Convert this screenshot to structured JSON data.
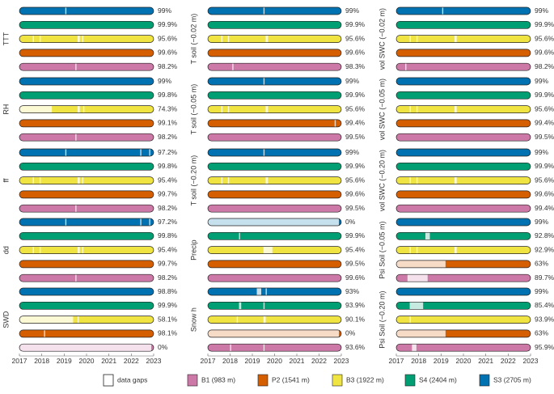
{
  "colors": {
    "B1": "#cc79a7",
    "P2": "#d55e00",
    "B3": "#f0e442",
    "S4": "#009e73",
    "S3": "#0072b2"
  },
  "legend": {
    "gap_label": "data gaps",
    "items": [
      {
        "key": "B1",
        "label": "B1 (983 m)"
      },
      {
        "key": "P2",
        "label": "P2 (1541 m)"
      },
      {
        "key": "B3",
        "label": "B3 (1922 m)"
      },
      {
        "key": "S4",
        "label": "S4 (2404 m)"
      },
      {
        "key": "S3",
        "label": "S3 (2705 m)"
      }
    ]
  },
  "chart_data": {
    "type": "bar",
    "description_of_values": "percentage of available data per station and variable, 2017-2023",
    "x_ticks": [
      "2017",
      "2018",
      "2019",
      "2020",
      "2021",
      "2022",
      "2023"
    ],
    "xlim": [
      2017,
      2023
    ],
    "station_order": [
      "S3",
      "S4",
      "B3",
      "P2",
      "B1"
    ],
    "panels": [
      {
        "col": 0,
        "row": 0,
        "label": "TTT",
        "pct": [
          "99%",
          "99.9%",
          "95.6%",
          "99.6%",
          "98.2%"
        ]
      },
      {
        "col": 0,
        "row": 1,
        "label": "RH",
        "pct": [
          "99%",
          "99.8%",
          "74.3%",
          "99.1%",
          "98.2%"
        ]
      },
      {
        "col": 0,
        "row": 2,
        "label": "ff",
        "pct": [
          "97.2%",
          "99.8%",
          "95.4%",
          "99.7%",
          "98.2%"
        ]
      },
      {
        "col": 0,
        "row": 3,
        "label": "dd",
        "pct": [
          "97.2%",
          "99.8%",
          "95.4%",
          "99.7%",
          "98.2%"
        ]
      },
      {
        "col": 0,
        "row": 4,
        "label": "SWD",
        "pct": [
          "98.8%",
          "99.9%",
          "58.1%",
          "98.1%",
          "0%"
        ]
      },
      {
        "col": 1,
        "row": 0,
        "label": "T soil (−0.02 m)",
        "pct": [
          "99%",
          "99.9%",
          "95.6%",
          "99.6%",
          "98.3%"
        ]
      },
      {
        "col": 1,
        "row": 1,
        "label": "T soil (−0.05 m)",
        "pct": [
          "99%",
          "99.9%",
          "95.6%",
          "99.4%",
          "99.5%"
        ]
      },
      {
        "col": 1,
        "row": 2,
        "label": "T soil (−0.20 m)",
        "pct": [
          "99%",
          "99.9%",
          "95.6%",
          "99.6%",
          "99.5%"
        ]
      },
      {
        "col": 1,
        "row": 3,
        "label": "Precip",
        "pct": [
          "0%",
          "99.9%",
          "95.4%",
          "99.5%",
          "99.6%"
        ]
      },
      {
        "col": 1,
        "row": 4,
        "label": "Snow h",
        "pct": [
          "93%",
          "93.9%",
          "90.1%",
          "0%",
          "93.6%"
        ]
      },
      {
        "col": 2,
        "row": 0,
        "label": "vol SWC (−0.02 m)",
        "pct": [
          "99%",
          "99.9%",
          "95.6%",
          "99.6%",
          "98.2%"
        ]
      },
      {
        "col": 2,
        "row": 1,
        "label": "vol SWC (−0.05 m)",
        "pct": [
          "99%",
          "99.9%",
          "95.6%",
          "99.4%",
          "99.5%"
        ]
      },
      {
        "col": 2,
        "row": 2,
        "label": "vol SWC (−0.20 m)",
        "pct": [
          "99%",
          "99.9%",
          "95.6%",
          "99.6%",
          "99.4%"
        ]
      },
      {
        "col": 2,
        "row": 3,
        "label": "Psi Soil (−0.05 m)",
        "pct": [
          "99%",
          "92.8%",
          "92.9%",
          "63%",
          "89.7%"
        ]
      },
      {
        "col": 2,
        "row": 4,
        "label": "Psi Soil (−0.20 m)",
        "pct": [
          "99%",
          "85.4%",
          "93.9%",
          "63%",
          "95.9%"
        ]
      }
    ],
    "gaps_by_panel": {
      "0-0": {
        "S3": [
          [
            2019.05,
            2019.1
          ]
        ],
        "S4": [],
        "B3": [
          [
            2017.6,
            2017.65
          ],
          [
            2017.9,
            2017.95
          ],
          [
            2019.6,
            2019.7
          ],
          [
            2019.8,
            2019.85
          ]
        ],
        "P2": [],
        "B1": [
          [
            2019.5,
            2019.55
          ]
        ]
      },
      "0-1": {
        "S3": [],
        "S4": [],
        "B3": [
          [
            2017.0,
            2018.45
          ],
          [
            2019.6,
            2019.7
          ],
          [
            2019.85,
            2019.9
          ]
        ],
        "P2": [],
        "B1": [
          [
            2019.5,
            2019.55
          ]
        ]
      },
      "0-2": {
        "S3": [
          [
            2019.05,
            2019.1
          ],
          [
            2022.4,
            2022.45
          ],
          [
            2022.8,
            2022.85
          ]
        ],
        "S4": [],
        "B3": [
          [
            2017.6,
            2017.65
          ],
          [
            2017.9,
            2017.95
          ],
          [
            2019.6,
            2019.7
          ],
          [
            2019.8,
            2019.85
          ]
        ],
        "P2": [],
        "B1": [
          [
            2019.5,
            2019.55
          ]
        ]
      },
      "0-3": {
        "S3": [
          [
            2019.05,
            2019.1
          ],
          [
            2022.4,
            2022.45
          ],
          [
            2022.8,
            2022.85
          ]
        ],
        "S4": [],
        "B3": [
          [
            2017.6,
            2017.65
          ],
          [
            2017.9,
            2017.95
          ],
          [
            2019.6,
            2019.7
          ],
          [
            2019.8,
            2019.85
          ]
        ],
        "P2": [],
        "B1": [
          [
            2019.5,
            2019.55
          ]
        ]
      },
      "0-4": {
        "S3": [],
        "S4": [],
        "B3": [
          [
            2017.0,
            2019.4
          ],
          [
            2019.6,
            2019.65
          ]
        ],
        "P2": [
          [
            2018.1,
            2018.15
          ]
        ],
        "B1": [
          [
            2017.0,
            2023.0
          ]
        ]
      },
      "1-0": {
        "S3": [
          [
            2019.5,
            2019.55
          ]
        ],
        "S4": [],
        "B3": [
          [
            2017.6,
            2017.65
          ],
          [
            2017.9,
            2017.95
          ],
          [
            2019.6,
            2019.7
          ]
        ],
        "P2": [],
        "B1": [
          [
            2018.1,
            2018.15
          ]
        ]
      },
      "1-1": {
        "S3": [
          [
            2019.5,
            2019.55
          ]
        ],
        "S4": [],
        "B3": [
          [
            2017.6,
            2017.65
          ],
          [
            2017.9,
            2017.95
          ],
          [
            2019.6,
            2019.7
          ]
        ],
        "P2": [
          [
            2022.7,
            2022.75
          ]
        ],
        "B1": []
      },
      "1-2": {
        "S3": [
          [
            2019.5,
            2019.55
          ]
        ],
        "S4": [],
        "B3": [
          [
            2017.6,
            2017.65
          ],
          [
            2017.9,
            2017.95
          ],
          [
            2019.6,
            2019.7
          ]
        ],
        "P2": [],
        "B1": []
      },
      "1-3": {
        "S3": [
          [
            2017.0,
            2023.0
          ]
        ],
        "S4": [
          [
            2018.4,
            2018.45
          ]
        ],
        "B3": [
          [
            2019.5,
            2019.9
          ]
        ],
        "P2": [],
        "B1": []
      },
      "1-4": {
        "S3": [
          [
            2019.2,
            2019.4
          ],
          [
            2019.6,
            2019.65
          ]
        ],
        "S4": [
          [
            2018.4,
            2018.5
          ],
          [
            2019.5,
            2019.55
          ]
        ],
        "B3": [
          [
            2018.3,
            2018.35
          ],
          [
            2019.5,
            2019.6
          ]
        ],
        "P2": [
          [
            2017.0,
            2023.0
          ]
        ],
        "B1": [
          [
            2018.0,
            2018.05
          ],
          [
            2019.5,
            2019.55
          ]
        ]
      },
      "2-0": {
        "S3": [
          [
            2019.05,
            2019.1
          ]
        ],
        "S4": [],
        "B3": [
          [
            2017.6,
            2017.65
          ],
          [
            2017.9,
            2017.95
          ],
          [
            2019.6,
            2019.7
          ]
        ],
        "P2": [],
        "B1": [
          [
            2017.4,
            2017.45
          ]
        ]
      },
      "2-1": {
        "S3": [],
        "S4": [],
        "B3": [
          [
            2017.6,
            2017.65
          ],
          [
            2017.9,
            2017.95
          ],
          [
            2019.6,
            2019.7
          ]
        ],
        "P2": [],
        "B1": []
      },
      "2-2": {
        "S3": [],
        "S4": [],
        "B3": [
          [
            2017.6,
            2017.65
          ],
          [
            2017.9,
            2017.95
          ],
          [
            2019.6,
            2019.7
          ]
        ],
        "P2": [],
        "B1": []
      },
      "2-3": {
        "S3": [],
        "S4": [
          [
            2018.3,
            2018.5
          ]
        ],
        "B3": [
          [
            2017.6,
            2017.65
          ],
          [
            2017.9,
            2017.95
          ],
          [
            2019.6,
            2019.7
          ]
        ],
        "P2": [
          [
            2017.0,
            2019.2
          ]
        ],
        "B1": [
          [
            2017.5,
            2018.4
          ]
        ]
      },
      "2-4": {
        "S3": [],
        "S4": [
          [
            2017.6,
            2018.2
          ]
        ],
        "B3": [
          [
            2017.6,
            2017.65
          ]
        ],
        "P2": [
          [
            2017.0,
            2019.2
          ]
        ],
        "B1": [
          [
            2017.7,
            2017.9
          ]
        ]
      }
    }
  }
}
